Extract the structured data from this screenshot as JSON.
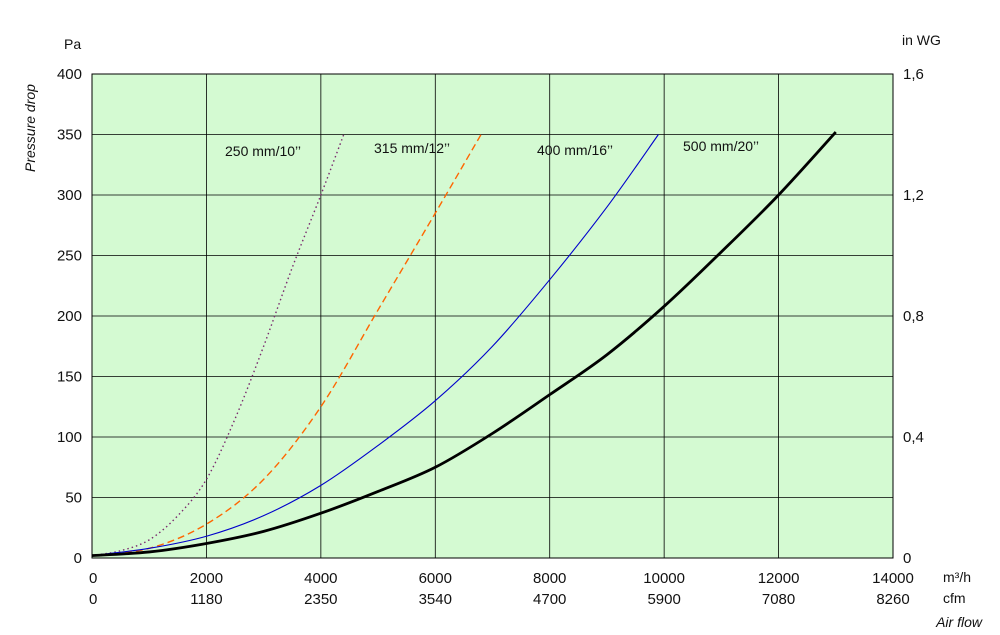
{
  "chart_data": {
    "type": "line",
    "title": "",
    "ylabel": "Pressure drop",
    "xlabel": "Air flow",
    "left_unit": "Pa",
    "right_unit": "in WG",
    "x_unit_primary": "m³/h",
    "x_unit_secondary": "cfm",
    "xlim": [
      0,
      14000
    ],
    "ylim": [
      0,
      400
    ],
    "grid": true,
    "background": "#d4fad2",
    "x_ticks_primary": [
      "0",
      "2000",
      "4000",
      "6000",
      "8000",
      "10000",
      "12000",
      "14000"
    ],
    "x_ticks_secondary": [
      "0",
      "1180",
      "2350",
      "3540",
      "4700",
      "5900",
      "7080",
      "8260"
    ],
    "y_ticks_left": [
      "0",
      "50",
      "100",
      "150",
      "200",
      "250",
      "300",
      "350",
      "400"
    ],
    "y_ticks_right": [
      {
        "label": "0",
        "value": 0
      },
      {
        "label": "0,4",
        "value": 100
      },
      {
        "label": "0,8",
        "value": 200
      },
      {
        "label": "1,2",
        "value": 300
      },
      {
        "label": "1,6",
        "value": 400
      }
    ],
    "series": [
      {
        "name": "250 mm/10’’",
        "color": "#7a2a6e",
        "style": "dotted",
        "x": [
          0,
          500,
          1000,
          1500,
          2000,
          2500,
          3000,
          3500,
          4000,
          4400
        ],
        "y": [
          2,
          6,
          15,
          35,
          65,
          115,
          175,
          240,
          300,
          350
        ]
      },
      {
        "name": "315 mm/12’’",
        "color": "#ff6600",
        "style": "dashed",
        "x": [
          0,
          1000,
          2000,
          3000,
          4000,
          5000,
          6000,
          6800
        ],
        "y": [
          2,
          8,
          28,
          65,
          125,
          205,
          285,
          350
        ]
      },
      {
        "name": "400 mm/16’’",
        "color": "#0000cc",
        "style": "solid",
        "x": [
          0,
          1000,
          2000,
          3000,
          4000,
          5000,
          6000,
          7000,
          8000,
          9000,
          9900
        ],
        "y": [
          2,
          8,
          18,
          35,
          60,
          93,
          130,
          175,
          230,
          290,
          350
        ]
      },
      {
        "name": "500 mm/20’’",
        "color": "#000000",
        "style": "bold",
        "x": [
          0,
          1000,
          2000,
          3000,
          4000,
          5000,
          6000,
          7000,
          8000,
          9000,
          10000,
          11000,
          12000,
          13000
        ],
        "y": [
          2,
          5,
          12,
          22,
          37,
          55,
          75,
          103,
          135,
          168,
          208,
          253,
          300,
          352
        ]
      }
    ]
  }
}
